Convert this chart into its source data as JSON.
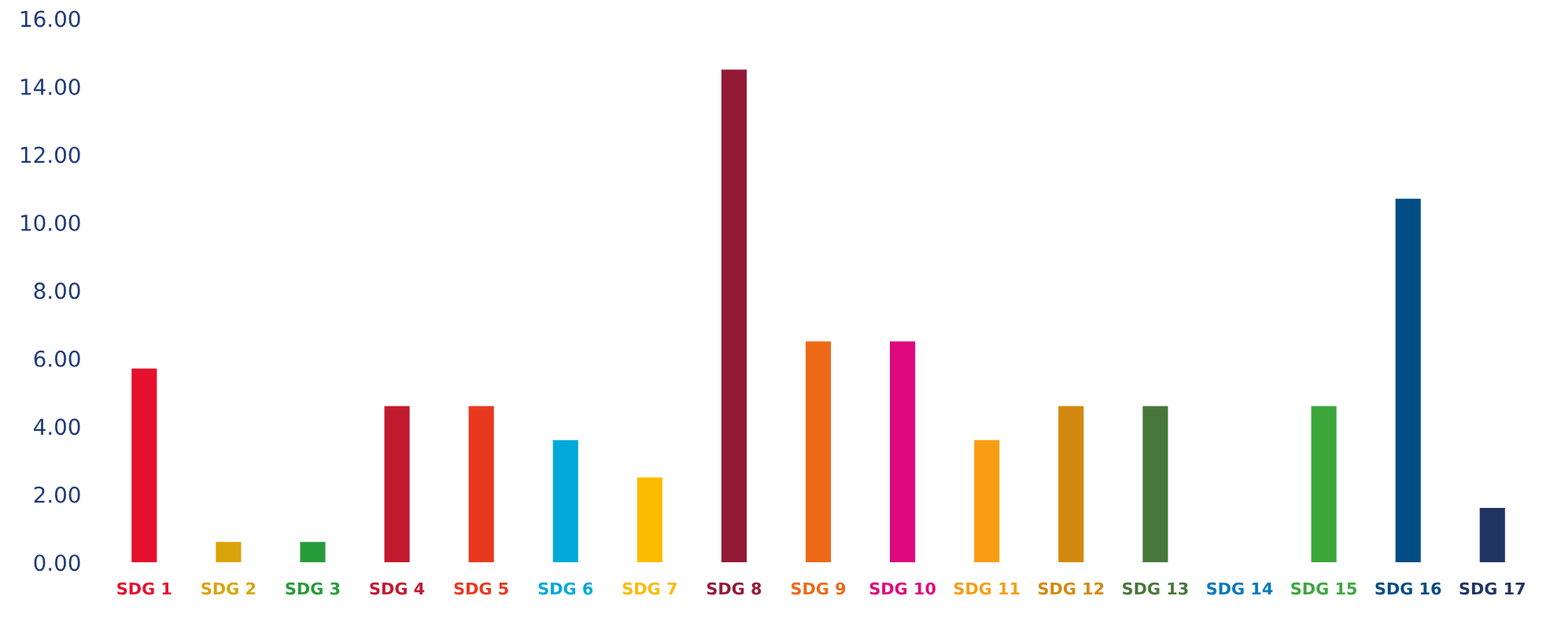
{
  "chart_data": {
    "type": "bar",
    "categories": [
      "SDG 1",
      "SDG 2",
      "SDG 3",
      "SDG 4",
      "SDG 5",
      "SDG 6",
      "SDG 7",
      "SDG 8",
      "SDG 9",
      "SDG 10",
      "SDG 11",
      "SDG 12",
      "SDG 13",
      "SDG 14",
      "SDG 15",
      "SDG 16",
      "SDG 17"
    ],
    "values": [
      5.7,
      0.6,
      0.6,
      4.6,
      4.6,
      3.6,
      2.5,
      14.5,
      6.5,
      6.5,
      3.6,
      4.6,
      4.6,
      0,
      4.6,
      10.7,
      1.6
    ],
    "colors": [
      "#e5112c",
      "#d9a40a",
      "#279b3a",
      "#c21a2f",
      "#e8391f",
      "#01a9d9",
      "#fbbb00",
      "#931a36",
      "#ec6917",
      "#df087c",
      "#f89d13",
      "#d3880f",
      "#47773a",
      "#0479be",
      "#3ca63a",
      "#004d85",
      "#203462"
    ],
    "ylim": [
      0,
      16
    ],
    "yticks": [
      {
        "value": 0,
        "label": "0.00"
      },
      {
        "value": 2,
        "label": "2.00"
      },
      {
        "value": 4,
        "label": "4.00"
      },
      {
        "value": 6,
        "label": "6.00"
      },
      {
        "value": 8,
        "label": "8.00"
      },
      {
        "value": 10,
        "label": "10.00"
      },
      {
        "value": 12,
        "label": "12.00"
      },
      {
        "value": 14,
        "label": "14.00"
      },
      {
        "value": 16,
        "label": "16.00"
      }
    ],
    "grid": false
  }
}
